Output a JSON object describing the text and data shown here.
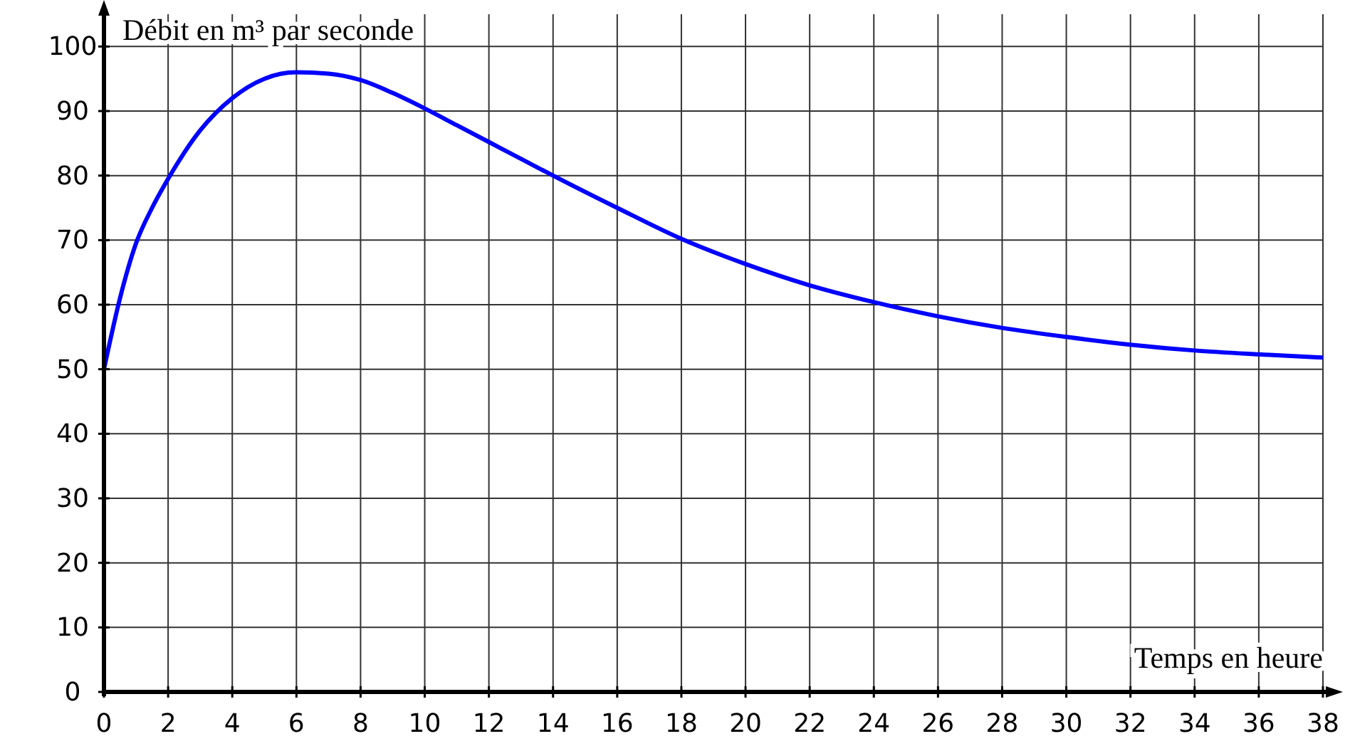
{
  "chart_data": {
    "type": "line",
    "xlabel": "Temps en heure",
    "ylabel": "Débit en m³ par seconde",
    "x": [
      0,
      0.5,
      1,
      1.5,
      2,
      3,
      4,
      5,
      6,
      7,
      8,
      9,
      10,
      11,
      12,
      13,
      14,
      16,
      18,
      20,
      22,
      24,
      26,
      28,
      30,
      32,
      34,
      36,
      38
    ],
    "series": [
      {
        "color": "#0000ff",
        "values": [
          50,
          61,
          69.5,
          75,
          79.5,
          87,
          92,
          95,
          96,
          95.8,
          94.8,
          92.8,
          90.4,
          87.8,
          85.2,
          82.6,
          80,
          75,
          70.2,
          66.3,
          63,
          60.4,
          58.2,
          56.4,
          55,
          53.8,
          52.9,
          52.3,
          51.8
        ]
      }
    ],
    "xlim": [
      0,
      38
    ],
    "ylim": [
      0,
      105
    ],
    "xticks": [
      0,
      2,
      4,
      6,
      8,
      10,
      12,
      14,
      16,
      18,
      20,
      22,
      24,
      26,
      28,
      30,
      32,
      34,
      36,
      38
    ],
    "yticks": [
      0,
      10,
      20,
      30,
      40,
      50,
      60,
      70,
      80,
      90,
      100
    ],
    "grid": true,
    "line_style": "solid",
    "marker": "none"
  }
}
